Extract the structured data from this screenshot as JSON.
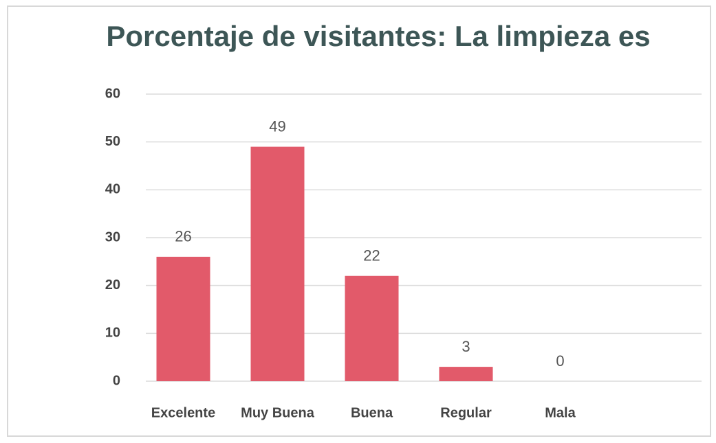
{
  "chart_data": {
    "type": "bar",
    "title": "Porcentaje de visitantes: La limpieza es",
    "categories": [
      "Excelente",
      "Muy Buena",
      "Buena",
      "Regular",
      "Mala"
    ],
    "values": [
      26,
      49,
      22,
      3,
      0
    ],
    "color": "#e25a6a",
    "ylim": [
      0,
      60
    ],
    "yticks": [
      0,
      10,
      20,
      30,
      40,
      50,
      60
    ],
    "grid": true
  }
}
